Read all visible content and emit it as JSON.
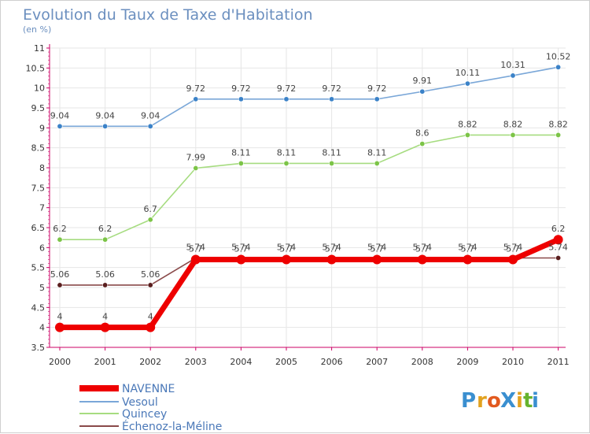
{
  "chart_data": {
    "type": "line",
    "title": "Evolution du Taux de Taxe d'Habitation",
    "subtitle": "(en %)",
    "xlabel": "",
    "ylabel": "",
    "ylim": [
      3.5,
      11
    ],
    "yticks": [
      "3.5",
      "4",
      "4.5",
      "5",
      "5.5",
      "6",
      "6.5",
      "7",
      "7.5",
      "8",
      "8.5",
      "9",
      "9.5",
      "10",
      "10.5",
      "11"
    ],
    "x": [
      "2000",
      "2001",
      "2002",
      "2003",
      "2004",
      "2005",
      "2006",
      "2007",
      "2008",
      "2009",
      "2010",
      "2011"
    ],
    "series": [
      {
        "name": "Vesoul",
        "color": "#7aa7d8",
        "marker": "#3b82c8",
        "values": [
          9.04,
          9.04,
          9.04,
          9.72,
          9.72,
          9.72,
          9.72,
          9.72,
          9.91,
          10.11,
          10.31,
          10.52
        ],
        "labels": [
          "9.04",
          "9.04",
          "9.04",
          "9.72",
          "9.72",
          "9.72",
          "9.72",
          "9.72",
          "9.91",
          "10.11",
          "10.31",
          "10.52"
        ]
      },
      {
        "name": "Quincey",
        "color": "#a6dc80",
        "marker": "#7cc447",
        "values": [
          6.2,
          6.2,
          6.7,
          7.99,
          8.11,
          8.11,
          8.11,
          8.11,
          8.6,
          8.82,
          8.82,
          8.82
        ],
        "labels": [
          "6.2",
          "6.2",
          "6.7",
          "7.99",
          "8.11",
          "8.11",
          "8.11",
          "8.11",
          "8.6",
          "8.82",
          "8.82",
          "8.82"
        ]
      },
      {
        "name": "Échenoz-la-Méline",
        "color": "#8a4a4a",
        "marker": "#5a1e1e",
        "values": [
          5.06,
          5.06,
          5.06,
          5.74,
          5.74,
          5.74,
          5.74,
          5.74,
          5.74,
          5.74,
          5.74,
          5.74
        ],
        "labels": [
          "5.06",
          "5.06",
          "5.06",
          "5.74",
          "5.74",
          "5.74",
          "5.74",
          "5.74",
          "5.74",
          "5.74",
          "5.74",
          "5.74"
        ]
      },
      {
        "name": "NAVENNE",
        "color": "#ee0000",
        "marker": "#ee0000",
        "values": [
          4,
          4,
          4,
          5.7,
          5.7,
          5.7,
          5.7,
          5.7,
          5.7,
          5.7,
          5.7,
          6.2
        ],
        "labels": [
          "4",
          "4",
          "4",
          "5.7",
          "5.7",
          "5.7",
          "5.7",
          "5.7",
          "5.7",
          "5.7",
          "5.7",
          "6.2"
        ]
      }
    ],
    "legend": [
      "NAVENNE",
      "Vesoul",
      "Quincey",
      "Échenoz-la-Méline"
    ],
    "legend_position": "bottom-left"
  },
  "logo": {
    "text": "ProXiti",
    "letters": [
      "P",
      "r",
      "o",
      "X",
      "i",
      "t",
      "i"
    ],
    "colors": [
      "#3a8fd0",
      "#e2a21f",
      "#e25a1f",
      "#3a8fd0",
      "#e2a21f",
      "#66b32e",
      "#3a8fd0"
    ]
  },
  "colors": {
    "axis": "#cc0066",
    "grid": "#e6e6e6",
    "title": "#6b8fbf"
  }
}
